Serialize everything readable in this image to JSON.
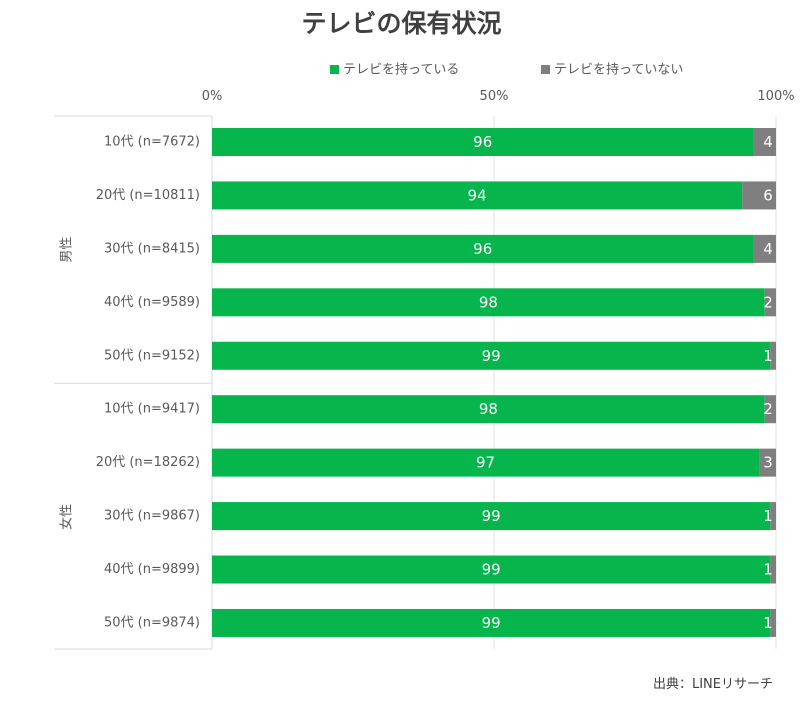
{
  "chart_data": {
    "type": "bar",
    "stacked": true,
    "orientation": "horizontal",
    "title": "テレビの保有状況",
    "legend": {
      "position": "top",
      "items": [
        {
          "name": "テレビを持っている",
          "color": "#06b54c"
        },
        {
          "name": "テレビを持っていない",
          "color": "#7f7f7f"
        }
      ]
    },
    "axis": {
      "range": [
        0,
        100
      ],
      "ticks": [
        {
          "value": 0,
          "label": "0%"
        },
        {
          "value": 50,
          "label": "50%"
        },
        {
          "value": 100,
          "label": "100%"
        }
      ],
      "grid": true
    },
    "groups": [
      {
        "label": "男性",
        "rows": [
          0,
          1,
          2,
          3,
          4
        ]
      },
      {
        "label": "女性",
        "rows": [
          5,
          6,
          7,
          8,
          9
        ]
      }
    ],
    "categories": [
      "10代 (n=7672)",
      "20代 (n=10811)",
      "30代 (n=8415)",
      "40代 (n=9589)",
      "50代 (n=9152)",
      "10代 (n=9417)",
      "20代 (n=18262)",
      "30代 (n=9867)",
      "40代 (n=9899)",
      "50代 (n=9874)"
    ],
    "series": [
      {
        "name": "テレビを持っている",
        "color": "#06b54c",
        "values": [
          96,
          94,
          96,
          98,
          99,
          98,
          97,
          99,
          99,
          99
        ]
      },
      {
        "name": "テレビを持っていない",
        "color": "#7f7f7f",
        "values": [
          4,
          6,
          4,
          2,
          1,
          2,
          3,
          1,
          1,
          1
        ]
      }
    ]
  },
  "source": "出典：LINEリサーチ"
}
